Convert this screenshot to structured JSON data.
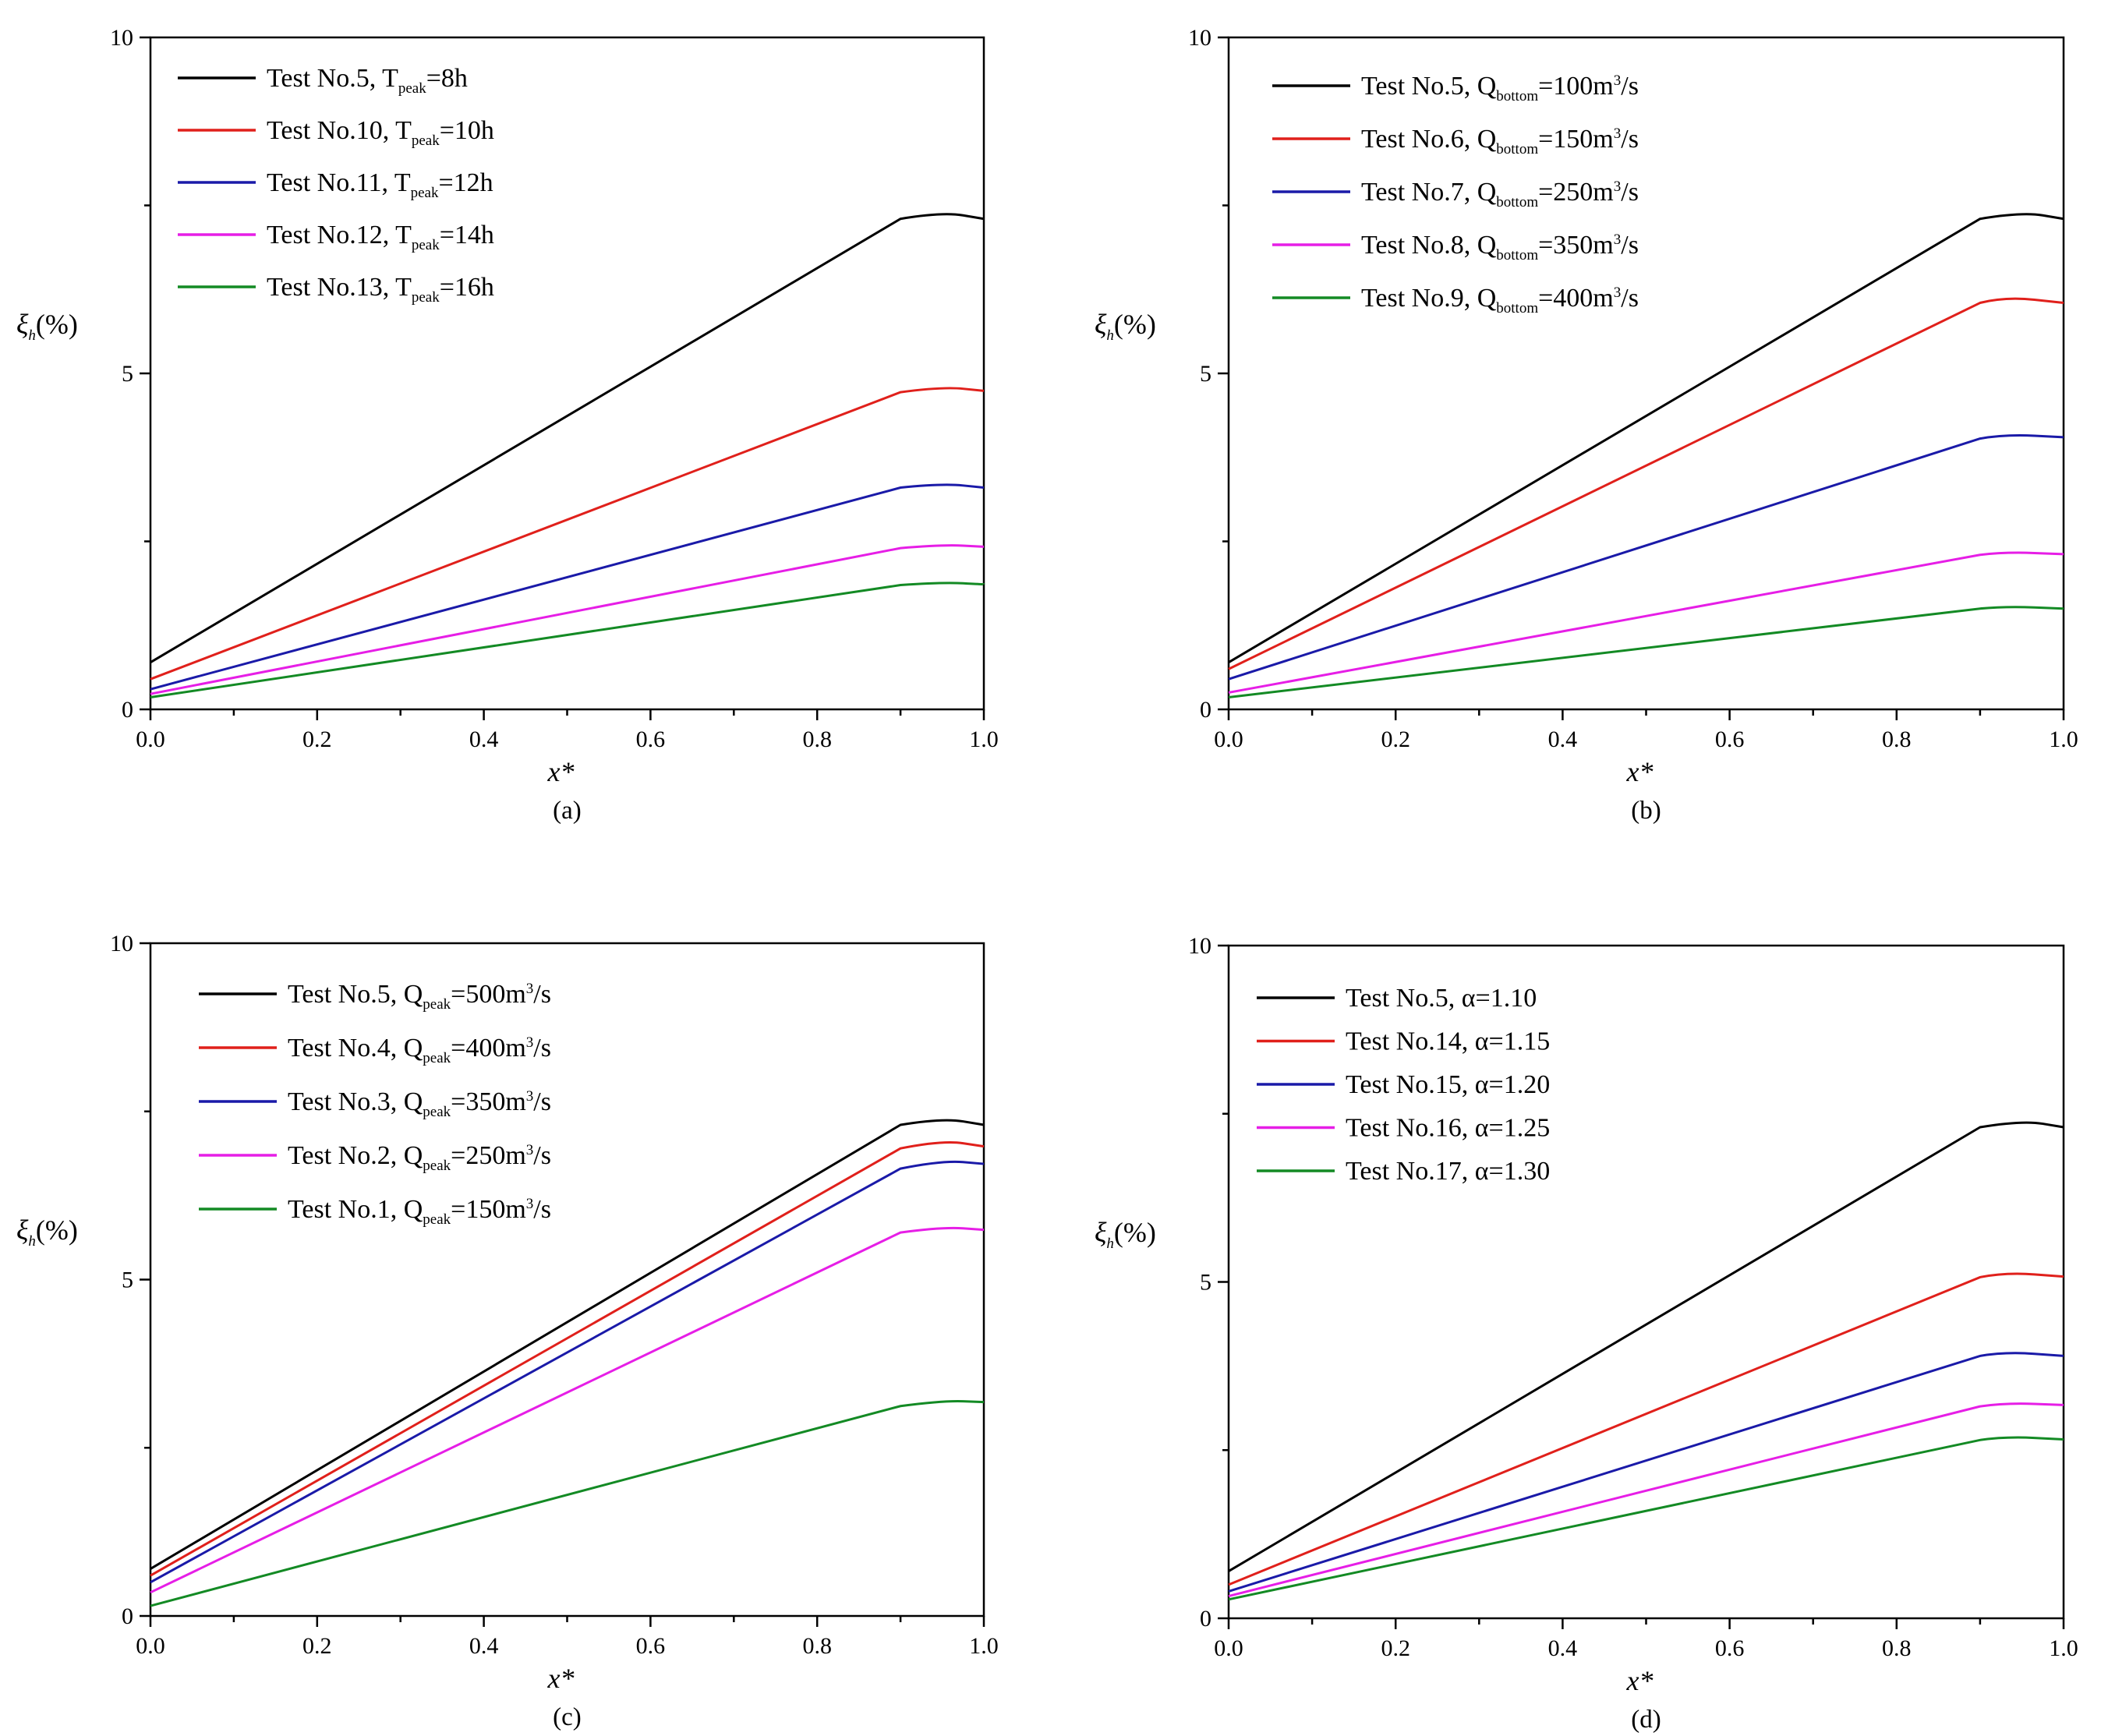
{
  "chart_data": [
    {
      "panel_label": "(a)",
      "type": "line",
      "xlabel": "x*",
      "ylabel": {
        "sym": "ξ",
        "sub": "h",
        "unit": "(%)"
      },
      "xlim": [
        0,
        1
      ],
      "ylim": [
        0,
        10
      ],
      "xticks": [
        "0.0",
        "0.2",
        "0.4",
        "0.6",
        "0.8",
        "1.0"
      ],
      "yticks": [
        "0",
        "5",
        "10"
      ],
      "legend_position": "top-left",
      "series": [
        {
          "legend": {
            "pre": "Test No.5, T",
            "sub": "peak",
            "post": "=8h",
            "sup": "",
            "tail": ""
          },
          "color": "#000000",
          "x": [
            0,
            0.9,
            0.95,
            1.0
          ],
          "y": [
            0.7,
            7.3,
            7.38,
            7.3
          ]
        },
        {
          "legend": {
            "pre": "Test No.10, T",
            "sub": "peak",
            "post": "=10h",
            "sup": "",
            "tail": ""
          },
          "color": "#e0201b",
          "x": [
            0,
            0.9,
            0.95,
            1.0
          ],
          "y": [
            0.45,
            4.72,
            4.78,
            4.74
          ]
        },
        {
          "legend": {
            "pre": "Test No.11, T",
            "sub": "peak",
            "post": "=12h",
            "sup": "",
            "tail": ""
          },
          "color": "#1a1aa8",
          "x": [
            0,
            0.9,
            0.95,
            1.0
          ],
          "y": [
            0.3,
            3.3,
            3.34,
            3.3
          ]
        },
        {
          "legend": {
            "pre": "Test No.12, T",
            "sub": "peak",
            "post": "=14h",
            "sup": "",
            "tail": ""
          },
          "color": "#e61ee6",
          "x": [
            0,
            0.9,
            0.95,
            1.0
          ],
          "y": [
            0.23,
            2.4,
            2.43,
            2.42
          ]
        },
        {
          "legend": {
            "pre": "Test No.13, T",
            "sub": "peak",
            "post": "=16h",
            "sup": "",
            "tail": ""
          },
          "color": "#138a24",
          "x": [
            0,
            0.9,
            0.95,
            1.0
          ],
          "y": [
            0.18,
            1.85,
            1.87,
            1.86
          ]
        }
      ]
    },
    {
      "panel_label": "(b)",
      "type": "line",
      "xlabel": "x*",
      "ylabel": {
        "sym": "ξ",
        "sub": "h",
        "unit": "(%)"
      },
      "xlim": [
        0,
        1
      ],
      "ylim": [
        0,
        10
      ],
      "xticks": [
        "0.0",
        "0.2",
        "0.4",
        "0.6",
        "0.8",
        "1.0"
      ],
      "yticks": [
        "0",
        "5",
        "10"
      ],
      "legend_position": "top-left",
      "series": [
        {
          "legend": {
            "pre": "Test No.5, Q",
            "sub": "bottom",
            "post": "=100m",
            "sup": "3",
            "tail": "/s"
          },
          "color": "#000000",
          "x": [
            0,
            0.9,
            0.95,
            1.0
          ],
          "y": [
            0.7,
            7.3,
            7.38,
            7.3
          ]
        },
        {
          "legend": {
            "pre": "Test No.6, Q",
            "sub": "bottom",
            "post": "=150m",
            "sup": "3",
            "tail": "/s"
          },
          "color": "#e0201b",
          "x": [
            0,
            0.9,
            0.93,
            1.0
          ],
          "y": [
            0.6,
            6.05,
            6.12,
            6.05
          ]
        },
        {
          "legend": {
            "pre": "Test No.7, Q",
            "sub": "bottom",
            "post": "=250m",
            "sup": "3",
            "tail": "/s"
          },
          "color": "#1a1aa8",
          "x": [
            0,
            0.9,
            0.93,
            1.0
          ],
          "y": [
            0.45,
            4.03,
            4.07,
            4.05
          ]
        },
        {
          "legend": {
            "pre": "Test No.8, Q",
            "sub": "bottom",
            "post": "=350m",
            "sup": "3",
            "tail": "/s"
          },
          "color": "#e61ee6",
          "x": [
            0,
            0.9,
            0.93,
            1.0
          ],
          "y": [
            0.25,
            2.3,
            2.32,
            2.31
          ]
        },
        {
          "legend": {
            "pre": "Test No.9, Q",
            "sub": "bottom",
            "post": "=400m",
            "sup": "3",
            "tail": "/s"
          },
          "color": "#138a24",
          "x": [
            0,
            0.9,
            0.93,
            1.0
          ],
          "y": [
            0.18,
            1.5,
            1.51,
            1.5
          ]
        }
      ]
    },
    {
      "panel_label": "(c)",
      "type": "line",
      "xlabel": "x*",
      "ylabel": {
        "sym": "ξ",
        "sub": "h",
        "unit": "(%)"
      },
      "xlim": [
        0,
        1
      ],
      "ylim": [
        0,
        10
      ],
      "xticks": [
        "0.0",
        "0.2",
        "0.4",
        "0.6",
        "0.8",
        "1.0"
      ],
      "yticks": [
        "0",
        "5",
        "10"
      ],
      "legend_position": "top-left",
      "series": [
        {
          "legend": {
            "pre": "Test No.5, Q",
            "sub": "peak",
            "post": "=500m",
            "sup": "3",
            "tail": "/s"
          },
          "color": "#000000",
          "x": [
            0,
            0.9,
            0.95,
            1.0
          ],
          "y": [
            0.7,
            7.3,
            7.38,
            7.3
          ]
        },
        {
          "legend": {
            "pre": "Test No.4, Q",
            "sub": "peak",
            "post": "=400m",
            "sup": "3",
            "tail": "/s"
          },
          "color": "#e0201b",
          "x": [
            0,
            0.9,
            0.95,
            1.0
          ],
          "y": [
            0.6,
            6.95,
            7.05,
            6.98
          ]
        },
        {
          "legend": {
            "pre": "Test No.3, Q",
            "sub": "peak",
            "post": "=350m",
            "sup": "3",
            "tail": "/s"
          },
          "color": "#1a1aa8",
          "x": [
            0,
            0.9,
            0.95,
            1.0
          ],
          "y": [
            0.5,
            6.65,
            6.75,
            6.72
          ]
        },
        {
          "legend": {
            "pre": "Test No.2, Q",
            "sub": "peak",
            "post": "=250m",
            "sup": "3",
            "tail": "/s"
          },
          "color": "#e61ee6",
          "x": [
            0,
            0.9,
            0.95,
            1.0
          ],
          "y": [
            0.35,
            5.7,
            5.76,
            5.74
          ]
        },
        {
          "legend": {
            "pre": "Test No.1, Q",
            "sub": "peak",
            "post": "=150m",
            "sup": "3",
            "tail": "/s"
          },
          "color": "#138a24",
          "x": [
            0,
            0.9,
            0.95,
            1.0
          ],
          "y": [
            0.15,
            3.12,
            3.18,
            3.18
          ]
        }
      ]
    },
    {
      "panel_label": "(d)",
      "type": "line",
      "xlabel": "x*",
      "ylabel": {
        "sym": "ξ",
        "sub": "h",
        "unit": "(%)"
      },
      "xlim": [
        0,
        1
      ],
      "ylim": [
        0,
        10
      ],
      "xticks": [
        "0.0",
        "0.2",
        "0.4",
        "0.6",
        "0.8",
        "1.0"
      ],
      "yticks": [
        "0",
        "5",
        "10"
      ],
      "legend_position": "top-left",
      "series": [
        {
          "legend": {
            "pre": "Test No.5, α=1.10",
            "sub": "",
            "post": "",
            "sup": "",
            "tail": ""
          },
          "color": "#000000",
          "x": [
            0,
            0.9,
            0.95,
            1.0
          ],
          "y": [
            0.7,
            7.3,
            7.38,
            7.3
          ]
        },
        {
          "legend": {
            "pre": "Test No.14, α=1.15",
            "sub": "",
            "post": "",
            "sup": "",
            "tail": ""
          },
          "color": "#e0201b",
          "x": [
            0,
            0.9,
            0.93,
            1.0
          ],
          "y": [
            0.5,
            5.07,
            5.12,
            5.08
          ]
        },
        {
          "legend": {
            "pre": "Test No.15, α=1.20",
            "sub": "",
            "post": "",
            "sup": "",
            "tail": ""
          },
          "color": "#1a1aa8",
          "x": [
            0,
            0.9,
            0.93,
            1.0
          ],
          "y": [
            0.4,
            3.9,
            3.94,
            3.9
          ]
        },
        {
          "legend": {
            "pre": "Test No.16, α=1.25",
            "sub": "",
            "post": "",
            "sup": "",
            "tail": ""
          },
          "color": "#e61ee6",
          "x": [
            0,
            0.9,
            0.93,
            1.0
          ],
          "y": [
            0.33,
            3.15,
            3.18,
            3.17
          ]
        },
        {
          "legend": {
            "pre": "Test No.17, α=1.30",
            "sub": "",
            "post": "",
            "sup": "",
            "tail": ""
          },
          "color": "#138a24",
          "x": [
            0,
            0.9,
            0.93,
            1.0
          ],
          "y": [
            0.28,
            2.65,
            2.68,
            2.66
          ]
        }
      ]
    }
  ]
}
